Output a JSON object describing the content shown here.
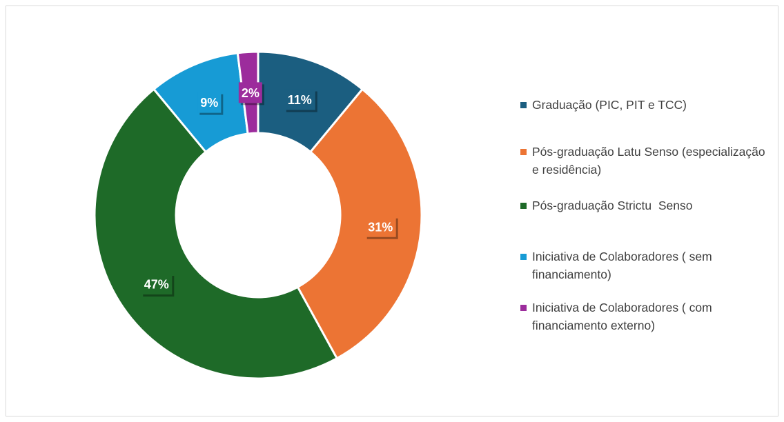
{
  "chart_data": {
    "type": "donut",
    "categories": [
      "Graduação (PIC, PIT e TCC)",
      "Pós-graduação Latu Senso (especialização e residência)",
      "Pós-graduação Strictu  Senso",
      "Iniciativa de Colaboradores ( sem financiamento)",
      "Iniciativa de Colaboradores ( com  financiamento externo)"
    ],
    "values": [
      11,
      31,
      47,
      9,
      2
    ],
    "value_labels": [
      "11%",
      "31%",
      "47%",
      "9%",
      "2%"
    ],
    "colors": [
      "#1b5e80",
      "#ec7434",
      "#1e6a28",
      "#179bd5",
      "#9c2c9c"
    ],
    "legend": "right"
  }
}
